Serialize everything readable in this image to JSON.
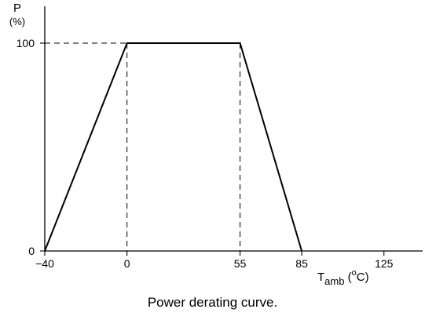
{
  "caption": "Power derating curve.",
  "chart_data": {
    "type": "line",
    "ylabel_main": "P",
    "ylabel_unit": "(%)",
    "xlabel_main": "T",
    "xlabel_sub": "amb",
    "xlabel_unit_open": " (",
    "xlabel_unit_sup": "o",
    "xlabel_unit_close": "C)",
    "xlim": [
      -40,
      140
    ],
    "ylim": [
      0,
      100
    ],
    "x_ticks": [
      {
        "value": -40,
        "label": "−40"
      },
      {
        "value": 0,
        "label": "0"
      },
      {
        "value": 55,
        "label": "55"
      },
      {
        "value": 85,
        "label": "85"
      },
      {
        "value": 125,
        "label": "125"
      }
    ],
    "y_ticks": [
      {
        "value": 0,
        "label": "0"
      },
      {
        "value": 100,
        "label": "100"
      }
    ],
    "series": [
      {
        "x": [
          -40,
          0,
          55,
          85
        ],
        "y": [
          0,
          100,
          100,
          0
        ]
      }
    ],
    "guides": [
      {
        "from": [
          -40,
          100
        ],
        "to": [
          0,
          100
        ]
      },
      {
        "from": [
          0,
          100
        ],
        "to": [
          0,
          0
        ]
      },
      {
        "from": [
          55,
          100
        ],
        "to": [
          55,
          0
        ]
      }
    ],
    "grid": false
  }
}
